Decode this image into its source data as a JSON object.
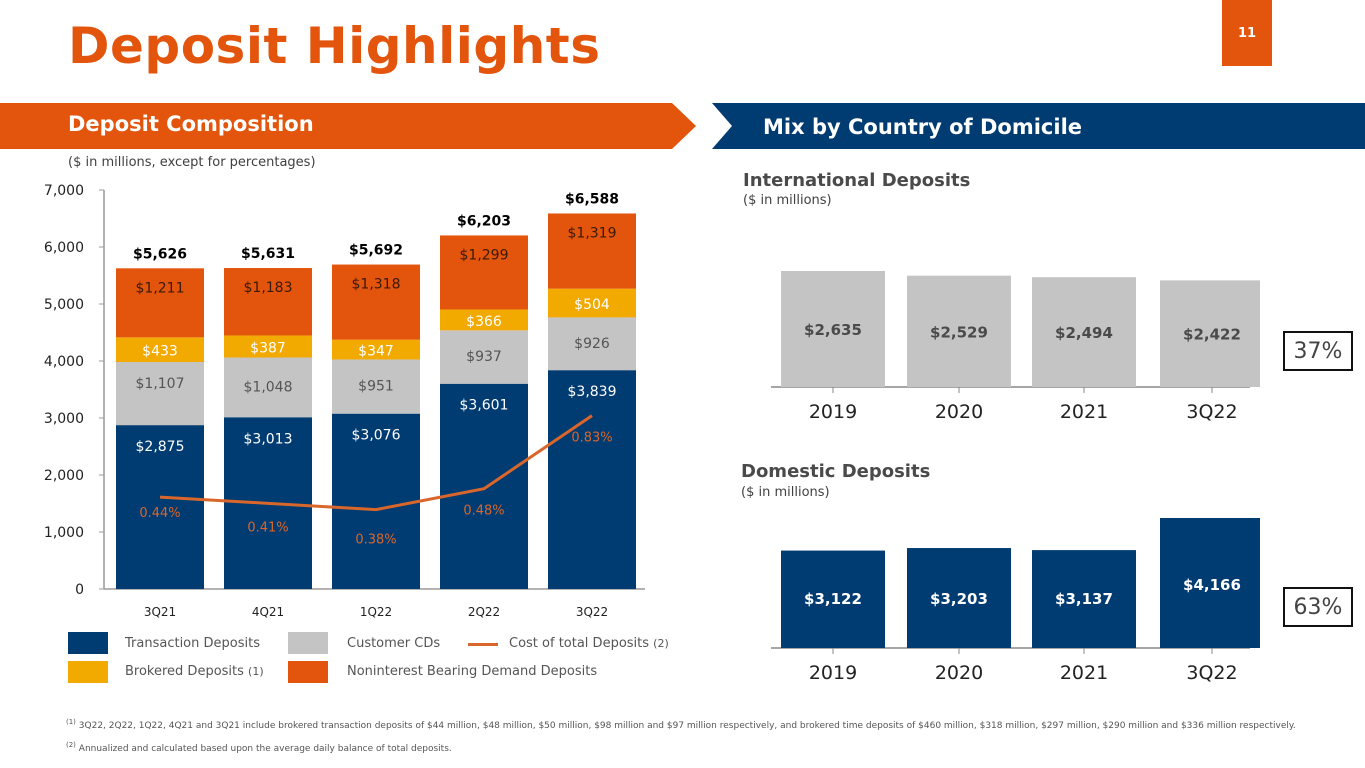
{
  "header": {
    "title": "Deposit Highlights",
    "page_number": "11"
  },
  "left_panel": {
    "banner": "Deposit Composition",
    "units": "($ in millions, except for percentages)"
  },
  "right_panel": {
    "banner": "Mix by Country of Domicile",
    "international": {
      "title": "International Deposits",
      "units": "($ in millions)",
      "share": "37%"
    },
    "domestic": {
      "title": "Domestic Deposits",
      "units": "($ in millions)",
      "share": "63%"
    }
  },
  "legend": [
    {
      "label": "Transaction Deposits",
      "note": "",
      "color": "#003B71",
      "kind": "box"
    },
    {
      "label": "Customer CDs",
      "note": "",
      "color": "#C4C4C4",
      "kind": "box"
    },
    {
      "label": "Cost of total Deposits",
      "note": "(2)",
      "color": "#D9662B",
      "kind": "line"
    },
    {
      "label": "Brokered Deposits",
      "note": "(1)",
      "color": "#F2A900",
      "kind": "box"
    },
    {
      "label": "Noninterest Bearing Demand Deposits",
      "note": "",
      "color": "#E3540C",
      "kind": "box"
    }
  ],
  "footnotes": {
    "f1_marker": "(1)",
    "f1": " 3Q22, 2Q22, 1Q22,  4Q21 and 3Q21 include brokered transaction deposits of $44 million, $48 million, $50 million, $98 million and $97 million respectively, and brokered time deposits of $460 million,  $318 million,  $297 million, $290 million and $336 million respectively.",
    "f2_marker": "(2)",
    "f2": " Annualized and calculated based upon the average daily balance of total deposits."
  },
  "colors": {
    "orange": "#E3540C",
    "navy": "#003B71",
    "gray": "#C4C4C4",
    "gold": "#F2A900",
    "line": "#D9662B"
  },
  "chart_data": [
    {
      "type": "bar",
      "stacked": true,
      "title": "Deposit Composition",
      "subtitle": "($ in millions, except for percentages)",
      "categories": [
        "3Q21",
        "4Q21",
        "1Q22",
        "2Q22",
        "3Q22"
      ],
      "ylim": [
        0,
        7000
      ],
      "yticks": [
        0,
        1000,
        2000,
        3000,
        4000,
        5000,
        6000,
        7000
      ],
      "ytick_labels": [
        "0",
        "1,000",
        "2,000",
        "3,000",
        "4,000",
        "5,000",
        "6,000",
        "7,000"
      ],
      "grid": false,
      "series": [
        {
          "name": "Transaction Deposits",
          "color": "#003B71",
          "label_color": "#ffffff",
          "values": [
            2875,
            3013,
            3076,
            3601,
            3839
          ],
          "labels": [
            "$2,875",
            "$3,013",
            "$3,076",
            "$3,601",
            "$3,839"
          ]
        },
        {
          "name": "Customer CDs",
          "color": "#C4C4C4",
          "label_color": "#555555",
          "values": [
            1107,
            1048,
            951,
            937,
            926
          ],
          "labels": [
            "$1,107",
            "$1,048",
            "$951",
            "$937",
            "$926"
          ]
        },
        {
          "name": "Brokered Deposits",
          "color": "#F2A900",
          "label_color": "#ffffff",
          "values": [
            433,
            387,
            347,
            366,
            504
          ],
          "labels": [
            "$433",
            "$387",
            "$347",
            "$366",
            "$504"
          ]
        },
        {
          "name": "Noninterest Bearing Demand Deposits",
          "color": "#E3540C",
          "label_color": "#3a1a08",
          "values": [
            1211,
            1183,
            1318,
            1299,
            1319
          ],
          "labels": [
            "$1,211",
            "$1,183",
            "$1,318",
            "$1,299",
            "$1,319"
          ]
        }
      ],
      "totals": [
        5626,
        5631,
        5692,
        6203,
        6588
      ],
      "total_labels": [
        "$5,626",
        "$5,631",
        "$5,692",
        "$6,203",
        "$6,588"
      ],
      "line_series": {
        "name": "Cost of total Deposits",
        "color": "#D9662B",
        "values_pct": [
          0.44,
          0.41,
          0.38,
          0.48,
          0.83
        ],
        "labels": [
          "0.44%",
          "0.41%",
          "0.38%",
          "0.48%",
          "0.83%"
        ]
      },
      "legend_position": "bottom"
    },
    {
      "type": "bar",
      "title": "International Deposits",
      "ylabel": "($ in millions)",
      "categories": [
        "2019",
        "2020",
        "2021",
        "3Q22"
      ],
      "values": [
        2635,
        2529,
        2494,
        2422
      ],
      "labels": [
        "$2,635",
        "$2,529",
        "$2,494",
        "$2,422"
      ],
      "color": "#C4C4C4",
      "label_color": "#4a4a4a",
      "share_label": "37%"
    },
    {
      "type": "bar",
      "title": "Domestic Deposits",
      "ylabel": "($ in millions)",
      "categories": [
        "2019",
        "2020",
        "2021",
        "3Q22"
      ],
      "values": [
        3122,
        3203,
        3137,
        4166
      ],
      "labels": [
        "$3,122",
        "$3,203",
        "$3,137",
        "$4,166"
      ],
      "color": "#003B71",
      "label_color": "#ffffff",
      "share_label": "63%"
    }
  ]
}
